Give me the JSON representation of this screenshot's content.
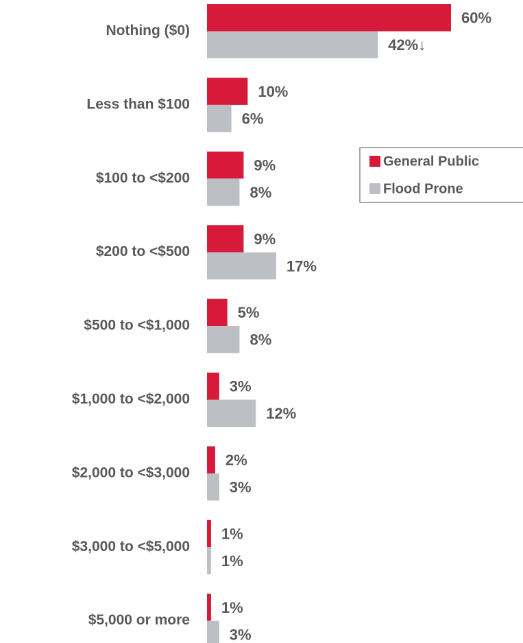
{
  "chart_data": {
    "type": "bar",
    "orientation": "horizontal",
    "categories": [
      "Nothing ($0)",
      "Less than $100",
      "$100 to <$200",
      "$200 to <$500",
      "$500 to <$1,000",
      "$1,000 to <$2,000",
      "$2,000 to <$3,000",
      "$3,000 to <$5,000",
      "$5,000 or more"
    ],
    "series": [
      {
        "name": "General Public",
        "color": "#d7193a",
        "values": [
          60,
          10,
          9,
          9,
          5,
          3,
          2,
          1,
          1
        ],
        "value_labels": [
          "60%",
          "10%",
          "9%",
          "9%",
          "5%",
          "3%",
          "2%",
          "1%",
          "1%"
        ]
      },
      {
        "name": "Flood Prone",
        "color": "#bcbfc4",
        "values": [
          42,
          6,
          8,
          17,
          8,
          12,
          3,
          1,
          3
        ],
        "value_labels": [
          "42%↓",
          "6%",
          "8%",
          "17%",
          "8%",
          "12%",
          "3%",
          "1%",
          "3%"
        ]
      }
    ],
    "legend": "right"
  }
}
